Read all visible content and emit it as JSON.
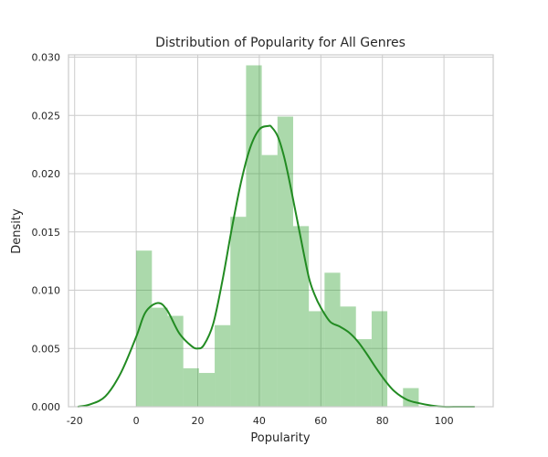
{
  "chart_data": {
    "type": "histogram",
    "title": "Distribution of Popularity for All Genres",
    "xlabel": "Popularity",
    "ylabel": "Density",
    "xlim": [
      -22,
      116
    ],
    "ylim": [
      0,
      0.0302
    ],
    "xticks": [
      -20,
      0,
      20,
      40,
      60,
      80,
      100
    ],
    "yticks": [
      0.0,
      0.005,
      0.01,
      0.015,
      0.02,
      0.025,
      0.03
    ],
    "ytick_labels": [
      "0.000",
      "0.005",
      "0.010",
      "0.015",
      "0.020",
      "0.025",
      "0.030"
    ],
    "grid": true,
    "bins": [
      {
        "x0": 0.0,
        "x1": 5.1,
        "density": 0.0134
      },
      {
        "x0": 5.1,
        "x1": 10.2,
        "density": 0.0085
      },
      {
        "x0": 10.2,
        "x1": 15.3,
        "density": 0.0078
      },
      {
        "x0": 15.3,
        "x1": 20.4,
        "density": 0.0033
      },
      {
        "x0": 20.4,
        "x1": 25.5,
        "density": 0.0029
      },
      {
        "x0": 25.5,
        "x1": 30.6,
        "density": 0.007
      },
      {
        "x0": 30.6,
        "x1": 35.7,
        "density": 0.0163
      },
      {
        "x0": 35.7,
        "x1": 40.8,
        "density": 0.0293
      },
      {
        "x0": 40.8,
        "x1": 45.9,
        "density": 0.0216
      },
      {
        "x0": 45.9,
        "x1": 51.0,
        "density": 0.0249
      },
      {
        "x0": 51.0,
        "x1": 56.1,
        "density": 0.0155
      },
      {
        "x0": 56.1,
        "x1": 61.2,
        "density": 0.0082
      },
      {
        "x0": 61.2,
        "x1": 66.3,
        "density": 0.0115
      },
      {
        "x0": 66.3,
        "x1": 71.4,
        "density": 0.0086
      },
      {
        "x0": 71.4,
        "x1": 76.5,
        "density": 0.0058
      },
      {
        "x0": 76.5,
        "x1": 81.6,
        "density": 0.0082
      },
      {
        "x0": 81.6,
        "x1": 86.7,
        "density": 0.0
      },
      {
        "x0": 86.7,
        "x1": 91.8,
        "density": 0.0016
      }
    ],
    "kde": {
      "x": [
        -19,
        -15,
        -10,
        -5,
        0,
        3,
        7,
        10,
        14,
        18,
        20,
        22,
        25,
        28,
        31,
        34,
        37,
        40,
        43,
        44,
        46,
        48,
        50,
        53,
        56,
        58,
        60,
        63,
        66,
        69,
        72,
        75,
        78,
        81,
        84,
        88,
        92,
        96,
        100,
        105,
        110
      ],
      "y": [
        0.0,
        0.0002,
        0.0009,
        0.0029,
        0.006,
        0.0081,
        0.0089,
        0.0083,
        0.0063,
        0.0052,
        0.005,
        0.0053,
        0.0071,
        0.0108,
        0.0152,
        0.0192,
        0.0222,
        0.0238,
        0.0241,
        0.024,
        0.0232,
        0.0215,
        0.0191,
        0.0151,
        0.0112,
        0.0096,
        0.0085,
        0.0073,
        0.0069,
        0.0064,
        0.0056,
        0.0045,
        0.0033,
        0.0022,
        0.0013,
        0.0006,
        0.0003,
        0.0001,
        0.0,
        0.0,
        0.0
      ]
    },
    "colors": {
      "bar": "#2ca02c",
      "line": "#228b22",
      "grid": "#cccccc"
    }
  }
}
